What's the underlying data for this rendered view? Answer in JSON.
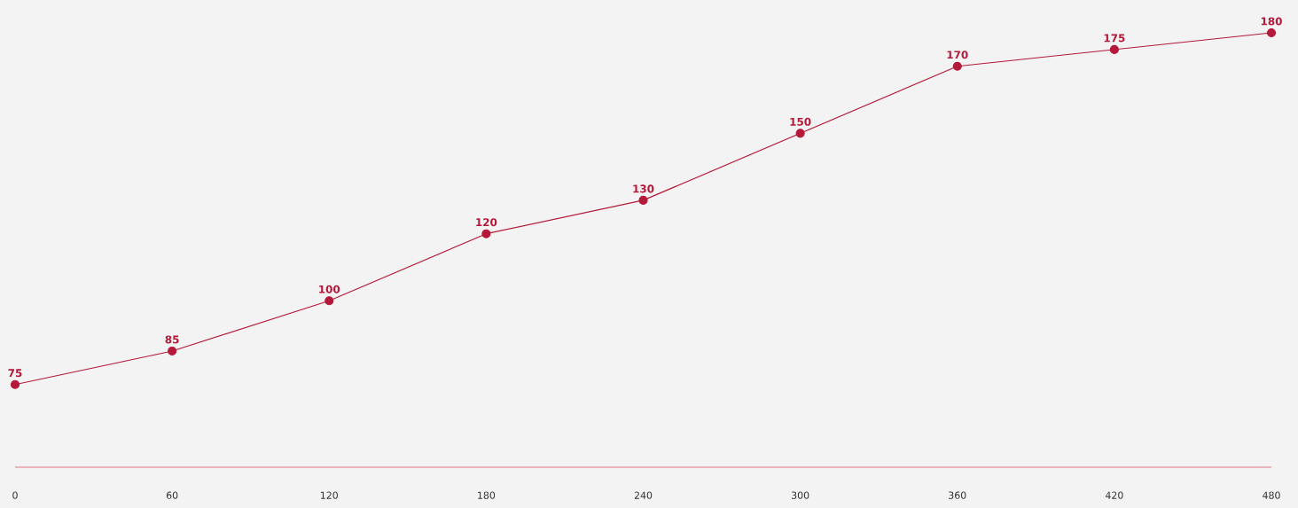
{
  "chart_data": {
    "type": "line",
    "x": [
      0,
      60,
      120,
      180,
      240,
      300,
      360,
      420,
      480
    ],
    "values": [
      75,
      85,
      100,
      120,
      130,
      150,
      170,
      175,
      180
    ],
    "color": "#b5193a",
    "xlim": [
      0,
      480
    ],
    "xticks": [
      0,
      60,
      120,
      180,
      240,
      300,
      360,
      420,
      480
    ],
    "marker": "circle",
    "line_style": "solid",
    "data_labels": true,
    "tick_labels": "x"
  }
}
